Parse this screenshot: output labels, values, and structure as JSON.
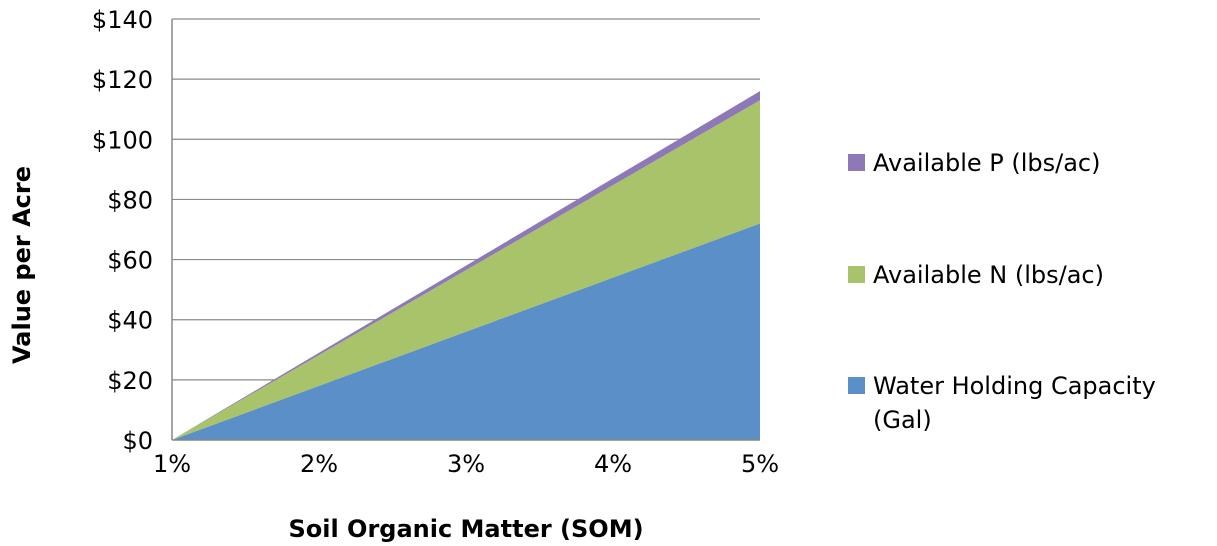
{
  "chart_data": {
    "type": "area",
    "stacked": true,
    "x": [
      "1%",
      "2%",
      "3%",
      "4%",
      "5%"
    ],
    "series": [
      {
        "name": "Water Holding Capacity (Gal)",
        "values": [
          0,
          18,
          36,
          54,
          72
        ],
        "color": "#5b8fc7"
      },
      {
        "name": "Available N (lbs/ac)",
        "values": [
          0,
          10.25,
          20.5,
          30.75,
          41
        ],
        "color": "#a8c36a"
      },
      {
        "name": "Available P (lbs/ac)",
        "values": [
          0,
          0.75,
          1.5,
          2.25,
          3
        ],
        "color": "#8e78b8"
      }
    ],
    "xlabel": "Soil Organic Matter (SOM)",
    "ylabel": "Value per Acre",
    "ylim": [
      0,
      140
    ],
    "yticks": [
      0,
      20,
      40,
      60,
      80,
      100,
      120,
      140
    ],
    "ytick_labels": [
      "$0",
      "$20",
      "$40",
      "$60",
      "$80",
      "$100",
      "$120",
      "$140"
    ],
    "grid": true,
    "legend_position": "right"
  }
}
